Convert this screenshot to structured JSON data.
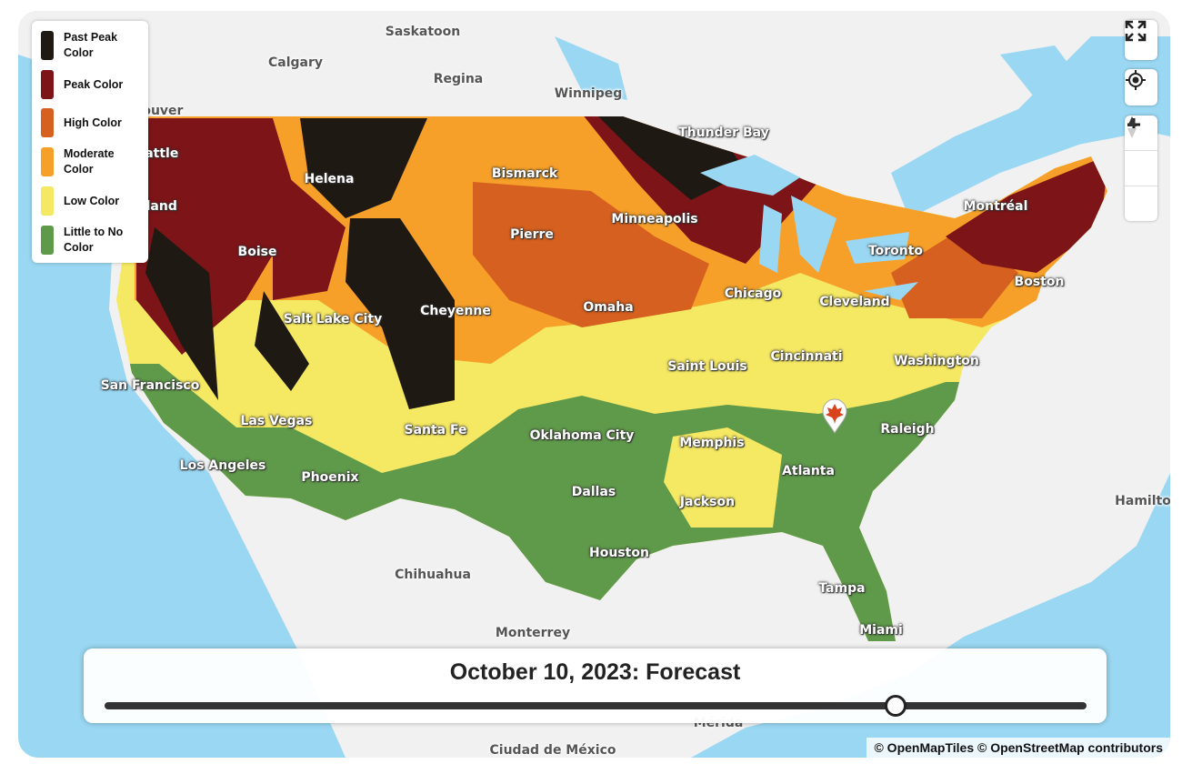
{
  "legend": [
    {
      "label": "Past Peak Color",
      "color": "#1e1913"
    },
    {
      "label": "Peak Color",
      "color": "#7c1418"
    },
    {
      "label": "High Color",
      "color": "#d6601f"
    },
    {
      "label": "Moderate Color",
      "color": "#f6a02a"
    },
    {
      "label": "Low Color",
      "color": "#f5e863"
    },
    {
      "label": "Little to No Color",
      "color": "#5f994a"
    }
  ],
  "cities": [
    "Saskatoon",
    "Calgary",
    "Regina",
    "Winnipeg",
    "Vancouver",
    "Seattle",
    "Portland",
    "Helena",
    "Bismarck",
    "Thunder Bay",
    "Minneapolis",
    "Pierre",
    "Boise",
    "Montréal",
    "Toronto",
    "Boston",
    "Cheyenne",
    "Salt Lake City",
    "Omaha",
    "Chicago",
    "Cleveland",
    "San Francisco",
    "Saint Louis",
    "Cincinnati",
    "Washington",
    "Las Vegas",
    "Santa Fe",
    "Oklahoma City",
    "Memphis",
    "Raleigh",
    "Los Angeles",
    "Phoenix",
    "Atlanta",
    "Dallas",
    "Jackson",
    "Hamilton",
    "Houston",
    "Chihuahua",
    "Tampa",
    "Miami",
    "Monterrey",
    "Mérida",
    "Ciudad de México"
  ],
  "slider": {
    "title": "October 10, 2023: Forecast"
  },
  "attribution": "© OpenMapTiles © OpenStreetMap contributors"
}
